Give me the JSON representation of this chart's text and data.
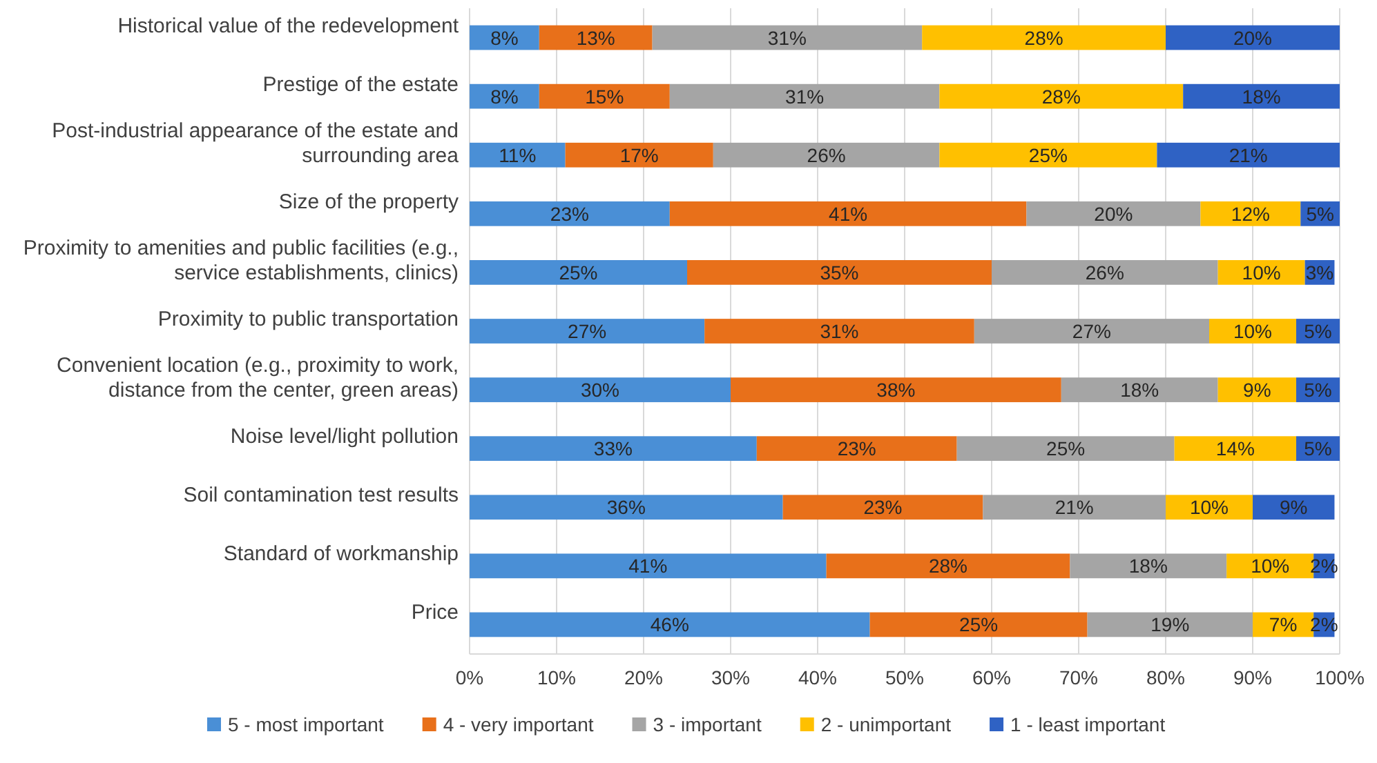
{
  "chart_data": {
    "type": "bar",
    "orientation": "horizontal",
    "stacked": true,
    "categories": [
      "Historical value of the redevelopment",
      "Prestige of the estate",
      "Post-industrial appearance of the estate and surrounding area",
      "Size of the property",
      "Proximity to amenities and public facilities (e.g., service establishments, clinics)",
      "Proximity to public transportation",
      "Convenient location (e.g., proximity to work, distance from the center, green areas)",
      "Noise level/light pollution",
      "Soil contamination test results",
      "Standard of workmanship",
      "Price"
    ],
    "series": [
      {
        "name": "5 - most important",
        "color": "#4a8fd6",
        "values": [
          8,
          8,
          11,
          23,
          25,
          27,
          30,
          33,
          36,
          41,
          46
        ],
        "value_labels": [
          "8%",
          "8%",
          "11%",
          "23%",
          "25%",
          "27%",
          "30%",
          "33%",
          "36%",
          "41%",
          "46%"
        ]
      },
      {
        "name": "4 - very important",
        "color": "#e8701a",
        "values": [
          13,
          15,
          17,
          41,
          35,
          31,
          38,
          23,
          23,
          28,
          25
        ],
        "value_labels": [
          "13%",
          "15%",
          "17%",
          "41%",
          "35%",
          "31%",
          "38%",
          "23%",
          "23%",
          "28%",
          "25%"
        ]
      },
      {
        "name": "3 - important",
        "color": "#a5a5a5",
        "values": [
          31,
          31,
          26,
          20,
          26,
          27,
          18,
          25,
          21,
          18,
          19
        ],
        "value_labels": [
          "31%",
          "31%",
          "26%",
          "20%",
          "26%",
          "27%",
          "18%",
          "25%",
          "21%",
          "18%",
          "19%"
        ]
      },
      {
        "name": "2 - unimportant",
        "color": "#ffc000",
        "values": [
          28,
          28,
          25,
          11.5,
          10,
          10,
          9,
          14,
          10,
          10,
          7
        ],
        "value_labels": [
          "28%",
          "28%",
          "25%",
          "12%",
          "10%",
          "10%",
          "9%",
          "14%",
          "10%",
          "10%",
          "7%"
        ]
      },
      {
        "name": "1 - least important",
        "color": "#2f62c4",
        "values": [
          20,
          18,
          21,
          4.5,
          3.4,
          5,
          5,
          5,
          9.4,
          2.4,
          2.4
        ],
        "value_labels": [
          "20%",
          "18%",
          "21%",
          "5%",
          "3%",
          "5%",
          "5%",
          "5%",
          "9%",
          "2%",
          "2%"
        ]
      }
    ],
    "xlim": [
      0,
      100
    ],
    "xticks": [
      {
        "value": 0,
        "label": "0%"
      },
      {
        "value": 10,
        "label": "10%"
      },
      {
        "value": 20,
        "label": "20%"
      },
      {
        "value": 30,
        "label": "30%"
      },
      {
        "value": 40,
        "label": "40%"
      },
      {
        "value": 50,
        "label": "50%"
      },
      {
        "value": 60,
        "label": "60%"
      },
      {
        "value": 70,
        "label": "70%"
      },
      {
        "value": 80,
        "label": "80%"
      },
      {
        "value": 90,
        "label": "90%"
      },
      {
        "value": 100,
        "label": "100%"
      }
    ],
    "grid": "x",
    "legend": "bottom"
  }
}
